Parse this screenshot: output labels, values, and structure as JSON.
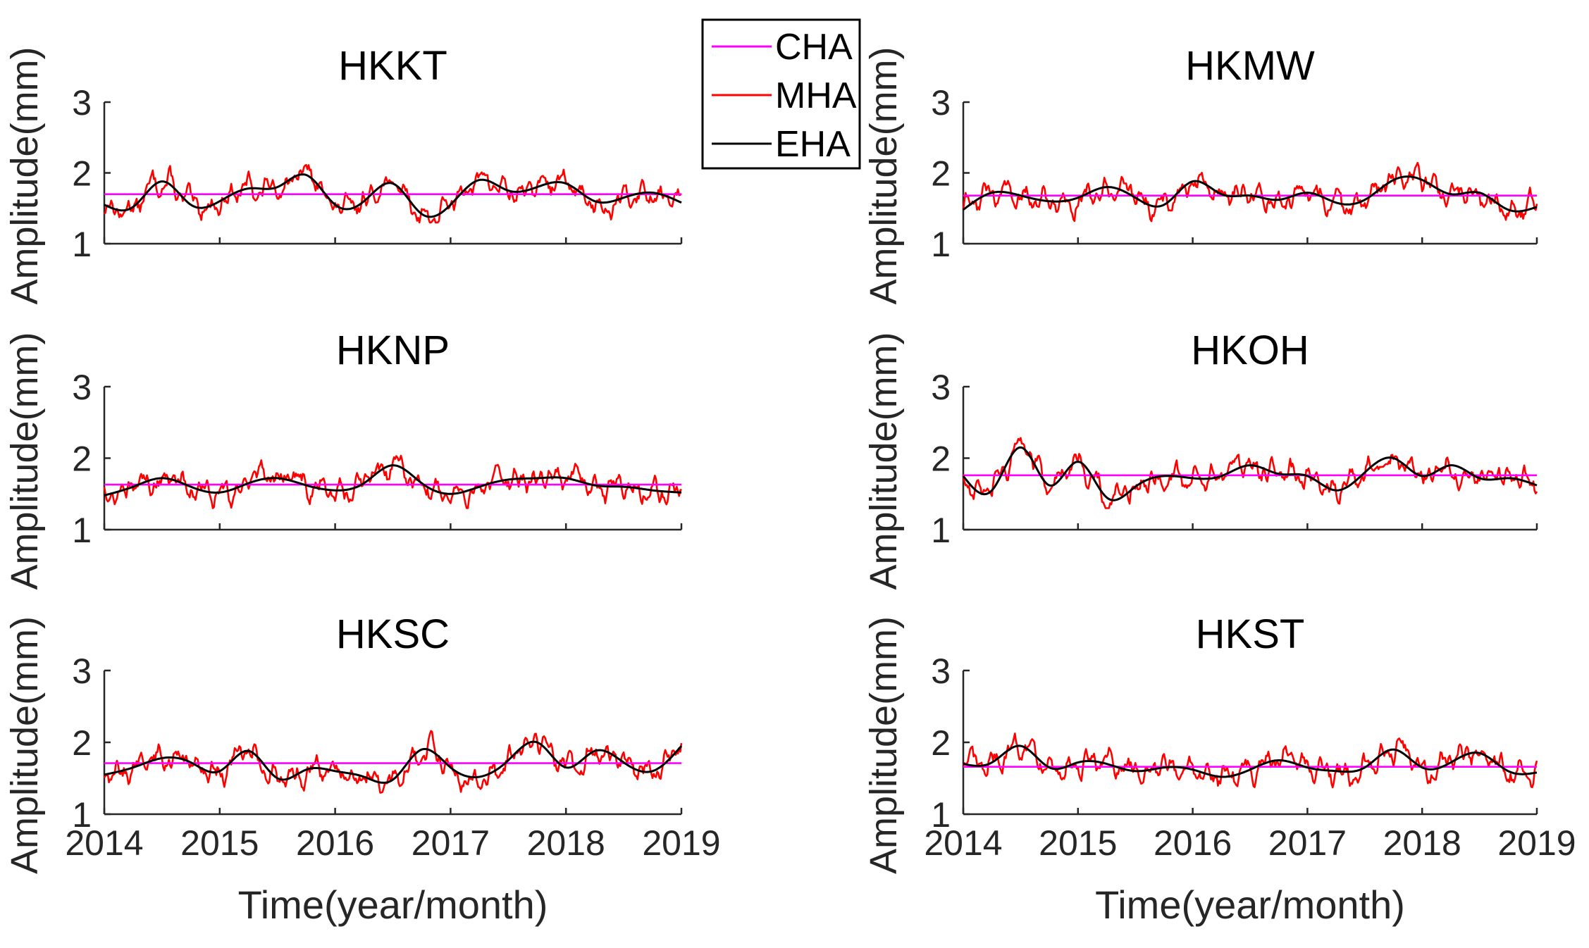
{
  "figure": {
    "colors": {
      "CHA": "#ff00ff",
      "MHA": "#ff0000",
      "EHA": "#000000",
      "axis": "#262626"
    }
  },
  "legend": {
    "entries": [
      {
        "label": "CHA",
        "color": "#ff00ff"
      },
      {
        "label": "MHA",
        "color": "#ff0000"
      },
      {
        "label": "EHA",
        "color": "#000000"
      }
    ]
  },
  "chart_data": [
    {
      "type": "line",
      "title": "HKKT",
      "xlabel": "",
      "ylabel": "Amplitude(mm)",
      "xlim": [
        2014,
        2019
      ],
      "ylim": [
        1,
        3
      ],
      "xticks": [
        2014,
        2015,
        2016,
        2017,
        2018,
        2019
      ],
      "yticks": [
        1,
        2,
        3
      ],
      "series": [
        {
          "name": "CHA",
          "value": 1.7
        },
        {
          "name": "EHA",
          "x": [
            2014,
            2014.25,
            2014.5,
            2014.75,
            2015,
            2015.25,
            2015.5,
            2015.75,
            2016,
            2016.25,
            2016.5,
            2016.75,
            2017,
            2017.25,
            2017.5,
            2017.75,
            2018,
            2018.25,
            2018.5,
            2018.75,
            2019
          ],
          "values": [
            1.55,
            1.52,
            1.88,
            1.55,
            1.6,
            1.78,
            1.8,
            1.97,
            1.55,
            1.6,
            1.85,
            1.42,
            1.55,
            1.9,
            1.75,
            1.8,
            1.85,
            1.6,
            1.65,
            1.72,
            1.58
          ]
        }
      ]
    },
    {
      "type": "line",
      "title": "HKMW",
      "xlabel": "",
      "ylabel": "Amplitude(mm)",
      "xlim": [
        2014,
        2019
      ],
      "ylim": [
        1,
        3
      ],
      "xticks": [
        2014,
        2015,
        2016,
        2017,
        2018,
        2019
      ],
      "yticks": [
        1,
        2,
        3
      ],
      "series": [
        {
          "name": "CHA",
          "value": 1.68
        },
        {
          "name": "EHA",
          "x": [
            2014,
            2014.25,
            2014.5,
            2014.75,
            2015,
            2015.25,
            2015.5,
            2015.75,
            2016,
            2016.25,
            2016.5,
            2016.75,
            2017,
            2017.25,
            2017.5,
            2017.75,
            2018,
            2018.25,
            2018.5,
            2018.75,
            2019
          ],
          "values": [
            1.48,
            1.72,
            1.68,
            1.6,
            1.65,
            1.8,
            1.65,
            1.55,
            1.88,
            1.7,
            1.68,
            1.62,
            1.72,
            1.58,
            1.62,
            1.9,
            1.9,
            1.7,
            1.72,
            1.48,
            1.52
          ]
        }
      ]
    },
    {
      "type": "line",
      "title": "HKNP",
      "xlabel": "",
      "ylabel": "Amplitude(mm)",
      "xlim": [
        2014,
        2019
      ],
      "ylim": [
        1,
        3
      ],
      "xticks": [
        2014,
        2015,
        2016,
        2017,
        2018,
        2019
      ],
      "yticks": [
        1,
        2,
        3
      ],
      "series": [
        {
          "name": "CHA",
          "value": 1.63
        },
        {
          "name": "EHA",
          "x": [
            2014,
            2014.25,
            2014.5,
            2014.75,
            2015,
            2015.25,
            2015.5,
            2015.75,
            2016,
            2016.25,
            2016.5,
            2016.75,
            2017,
            2017.25,
            2017.5,
            2017.75,
            2018,
            2018.25,
            2018.5,
            2018.75,
            2019
          ],
          "values": [
            1.48,
            1.6,
            1.72,
            1.6,
            1.52,
            1.65,
            1.72,
            1.62,
            1.55,
            1.65,
            1.9,
            1.65,
            1.5,
            1.6,
            1.7,
            1.72,
            1.72,
            1.62,
            1.6,
            1.55,
            1.52
          ]
        }
      ]
    },
    {
      "type": "line",
      "title": "HKOH",
      "xlabel": "",
      "ylabel": "Amplitude(mm)",
      "xlim": [
        2014,
        2019
      ],
      "ylim": [
        1,
        3
      ],
      "xticks": [
        2014,
        2015,
        2016,
        2017,
        2018,
        2019
      ],
      "yticks": [
        1,
        2,
        3
      ],
      "series": [
        {
          "name": "CHA",
          "value": 1.76
        },
        {
          "name": "EHA",
          "x": [
            2014,
            2014.25,
            2014.5,
            2014.75,
            2015,
            2015.25,
            2015.5,
            2015.75,
            2016,
            2016.25,
            2016.5,
            2016.75,
            2017,
            2017.25,
            2017.5,
            2017.75,
            2018,
            2018.25,
            2018.5,
            2018.75,
            2019
          ],
          "values": [
            1.75,
            1.55,
            2.15,
            1.62,
            1.95,
            1.45,
            1.6,
            1.75,
            1.72,
            1.75,
            1.9,
            1.78,
            1.75,
            1.55,
            1.8,
            2.0,
            1.75,
            1.9,
            1.72,
            1.72,
            1.62
          ]
        }
      ]
    },
    {
      "type": "line",
      "title": "HKSC",
      "xlabel": "Time(year/month)",
      "ylabel": "Amplitude(mm)",
      "xlim": [
        2014,
        2019
      ],
      "ylim": [
        1,
        3
      ],
      "xticks": [
        2014,
        2015,
        2016,
        2017,
        2018,
        2019
      ],
      "yticks": [
        1,
        2,
        3
      ],
      "series": [
        {
          "name": "CHA",
          "value": 1.71
        },
        {
          "name": "EHA",
          "x": [
            2014,
            2014.25,
            2014.5,
            2014.75,
            2015,
            2015.25,
            2015.5,
            2015.75,
            2016,
            2016.25,
            2016.5,
            2016.75,
            2017,
            2017.25,
            2017.5,
            2017.75,
            2018,
            2018.25,
            2018.5,
            2018.75,
            2019
          ],
          "values": [
            1.55,
            1.65,
            1.78,
            1.72,
            1.6,
            1.88,
            1.5,
            1.62,
            1.6,
            1.52,
            1.48,
            1.9,
            1.65,
            1.52,
            1.75,
            2.0,
            1.65,
            1.88,
            1.72,
            1.6,
            1.95
          ]
        }
      ]
    },
    {
      "type": "line",
      "title": "HKST",
      "xlabel": "Time(year/month)",
      "ylabel": "Amplitude(mm)",
      "xlim": [
        2014,
        2019
      ],
      "ylim": [
        1,
        3
      ],
      "xticks": [
        2014,
        2015,
        2016,
        2017,
        2018,
        2019
      ],
      "yticks": [
        1,
        2,
        3
      ],
      "series": [
        {
          "name": "CHA",
          "value": 1.66
        },
        {
          "name": "EHA",
          "x": [
            2014,
            2014.25,
            2014.5,
            2014.75,
            2015,
            2015.25,
            2015.5,
            2015.75,
            2016,
            2016.25,
            2016.5,
            2016.75,
            2017,
            2017.25,
            2017.5,
            2017.75,
            2018,
            2018.25,
            2018.5,
            2018.75,
            2019
          ],
          "values": [
            1.7,
            1.72,
            1.95,
            1.65,
            1.72,
            1.7,
            1.6,
            1.65,
            1.62,
            1.52,
            1.62,
            1.75,
            1.65,
            1.6,
            1.65,
            1.9,
            1.65,
            1.72,
            1.85,
            1.6,
            1.58
          ]
        }
      ]
    }
  ]
}
